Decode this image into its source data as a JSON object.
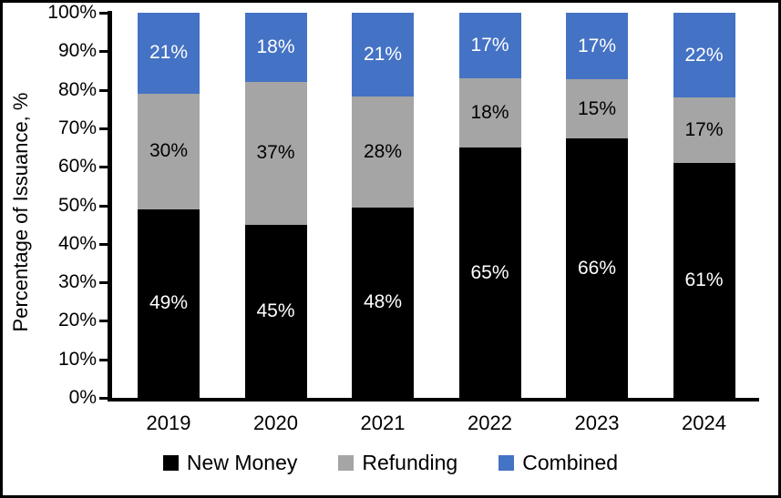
{
  "chart_data": {
    "type": "bar",
    "variant": "100-percent-stacked-column",
    "title": "",
    "xlabel": "",
    "ylabel": "Percentage of Issuance, %",
    "categories": [
      "2019",
      "2020",
      "2021",
      "2022",
      "2023",
      "2024"
    ],
    "series": [
      {
        "name": "New Money",
        "color": "#000000",
        "label_color": "#FFFFFF",
        "values": [
          49,
          45,
          48,
          65,
          66,
          61
        ]
      },
      {
        "name": "Refunding",
        "color": "#A5A5A5",
        "label_color": "#000000",
        "values": [
          30,
          37,
          28,
          18,
          15,
          17
        ]
      },
      {
        "name": "Combined",
        "color": "#4472C4",
        "label_color": "#FFFFFF",
        "values": [
          21,
          18,
          21,
          17,
          17,
          22
        ]
      }
    ],
    "data_label_suffix": "%",
    "y_ticks": [
      "0%",
      "10%",
      "20%",
      "30%",
      "40%",
      "50%",
      "60%",
      "70%",
      "80%",
      "90%",
      "100%"
    ],
    "ylim": [
      0,
      100
    ],
    "grid": false,
    "legend_position": "bottom"
  },
  "frame": {
    "background": "#FFFFFF",
    "border_color": "#000000"
  }
}
